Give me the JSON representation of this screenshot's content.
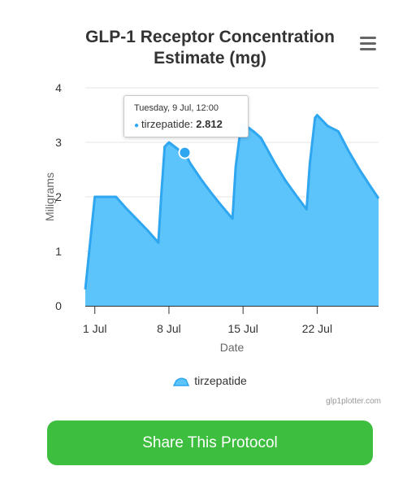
{
  "title_lines": [
    "GLP-1 Receptor Concentration",
    "Estimate (mg)"
  ],
  "menu_icon": "hamburger-menu-icon",
  "share_button": {
    "label": "Share This Protocol",
    "color": "#3dbe3f"
  },
  "credits": "glp1plotter.com",
  "chart_data": {
    "type": "area",
    "title": "GLP-1 Receptor Concentration Estimate (mg)",
    "xlabel": "Date",
    "ylabel": "Miligrams",
    "ylim": [
      0,
      4
    ],
    "yticks": [
      "0",
      "1",
      "2",
      "3",
      "4"
    ],
    "xticks": [
      {
        "label": "1 Jul",
        "day": 1
      },
      {
        "label": "8 Jul",
        "day": 8
      },
      {
        "label": "15 Jul",
        "day": 15
      },
      {
        "label": "22 Jul",
        "day": 22
      }
    ],
    "xlim_day": [
      0.1,
      27.8
    ],
    "grid": "horizontal",
    "color": "#2fa6f0",
    "fill_color": "#5cc3fb",
    "series": [
      {
        "name": "tirzepatide",
        "points": [
          [
            0.1,
            0.3
          ],
          [
            1.0,
            2.0
          ],
          [
            2.0,
            2.0
          ],
          [
            3.0,
            2.0
          ],
          [
            4.0,
            1.78
          ],
          [
            5.0,
            1.58
          ],
          [
            6.0,
            1.38
          ],
          [
            7.0,
            1.16
          ],
          [
            7.3,
            2.1
          ],
          [
            7.6,
            2.92
          ],
          [
            8.0,
            3.0
          ],
          [
            9.0,
            2.85
          ],
          [
            9.5,
            2.81
          ],
          [
            10.0,
            2.62
          ],
          [
            11.0,
            2.33
          ],
          [
            12.0,
            2.07
          ],
          [
            13.0,
            1.83
          ],
          [
            14.0,
            1.6
          ],
          [
            14.3,
            2.55
          ],
          [
            14.8,
            3.3
          ],
          [
            15.0,
            3.34
          ],
          [
            16.0,
            3.2
          ],
          [
            16.7,
            3.08
          ],
          [
            18.0,
            2.62
          ],
          [
            19.0,
            2.3
          ],
          [
            20.0,
            2.03
          ],
          [
            21.0,
            1.77
          ],
          [
            21.3,
            2.6
          ],
          [
            21.8,
            3.45
          ],
          [
            22.0,
            3.5
          ],
          [
            23.0,
            3.3
          ],
          [
            24.0,
            3.2
          ],
          [
            25.0,
            2.83
          ],
          [
            26.0,
            2.5
          ],
          [
            27.0,
            2.2
          ],
          [
            27.8,
            1.97
          ]
        ]
      }
    ],
    "legend": {
      "position": "bottom",
      "items": [
        "tirzepatide"
      ]
    },
    "tooltip": {
      "header": "Tuesday, 9 Jul, 12:00",
      "series": "tirzepatide",
      "value": "2.812",
      "day": 9.5,
      "y": 2.812
    }
  }
}
